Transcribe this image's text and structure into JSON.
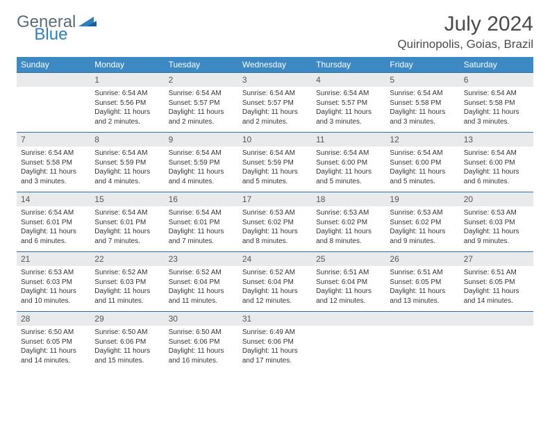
{
  "colors": {
    "header_bg": "#3d89c3",
    "header_text": "#ffffff",
    "daynum_bg": "#e9eaeb",
    "row_border": "#2d6fa8",
    "logo_gray": "#5a6b7a",
    "logo_blue": "#2d7fc1",
    "text": "#333333"
  },
  "logo": {
    "part1": "General",
    "part2": "Blue"
  },
  "title": "July 2024",
  "location": "Quirinopolis, Goias, Brazil",
  "weekdays": [
    "Sunday",
    "Monday",
    "Tuesday",
    "Wednesday",
    "Thursday",
    "Friday",
    "Saturday"
  ],
  "layout": {
    "first_weekday_index": 1,
    "days_in_month": 31
  },
  "days": {
    "1": {
      "sunrise": "6:54 AM",
      "sunset": "5:56 PM",
      "daylight": "11 hours and 2 minutes."
    },
    "2": {
      "sunrise": "6:54 AM",
      "sunset": "5:57 PM",
      "daylight": "11 hours and 2 minutes."
    },
    "3": {
      "sunrise": "6:54 AM",
      "sunset": "5:57 PM",
      "daylight": "11 hours and 2 minutes."
    },
    "4": {
      "sunrise": "6:54 AM",
      "sunset": "5:57 PM",
      "daylight": "11 hours and 3 minutes."
    },
    "5": {
      "sunrise": "6:54 AM",
      "sunset": "5:58 PM",
      "daylight": "11 hours and 3 minutes."
    },
    "6": {
      "sunrise": "6:54 AM",
      "sunset": "5:58 PM",
      "daylight": "11 hours and 3 minutes."
    },
    "7": {
      "sunrise": "6:54 AM",
      "sunset": "5:58 PM",
      "daylight": "11 hours and 3 minutes."
    },
    "8": {
      "sunrise": "6:54 AM",
      "sunset": "5:59 PM",
      "daylight": "11 hours and 4 minutes."
    },
    "9": {
      "sunrise": "6:54 AM",
      "sunset": "5:59 PM",
      "daylight": "11 hours and 4 minutes."
    },
    "10": {
      "sunrise": "6:54 AM",
      "sunset": "5:59 PM",
      "daylight": "11 hours and 5 minutes."
    },
    "11": {
      "sunrise": "6:54 AM",
      "sunset": "6:00 PM",
      "daylight": "11 hours and 5 minutes."
    },
    "12": {
      "sunrise": "6:54 AM",
      "sunset": "6:00 PM",
      "daylight": "11 hours and 5 minutes."
    },
    "13": {
      "sunrise": "6:54 AM",
      "sunset": "6:00 PM",
      "daylight": "11 hours and 6 minutes."
    },
    "14": {
      "sunrise": "6:54 AM",
      "sunset": "6:01 PM",
      "daylight": "11 hours and 6 minutes."
    },
    "15": {
      "sunrise": "6:54 AM",
      "sunset": "6:01 PM",
      "daylight": "11 hours and 7 minutes."
    },
    "16": {
      "sunrise": "6:54 AM",
      "sunset": "6:01 PM",
      "daylight": "11 hours and 7 minutes."
    },
    "17": {
      "sunrise": "6:53 AM",
      "sunset": "6:02 PM",
      "daylight": "11 hours and 8 minutes."
    },
    "18": {
      "sunrise": "6:53 AM",
      "sunset": "6:02 PM",
      "daylight": "11 hours and 8 minutes."
    },
    "19": {
      "sunrise": "6:53 AM",
      "sunset": "6:02 PM",
      "daylight": "11 hours and 9 minutes."
    },
    "20": {
      "sunrise": "6:53 AM",
      "sunset": "6:03 PM",
      "daylight": "11 hours and 9 minutes."
    },
    "21": {
      "sunrise": "6:53 AM",
      "sunset": "6:03 PM",
      "daylight": "11 hours and 10 minutes."
    },
    "22": {
      "sunrise": "6:52 AM",
      "sunset": "6:03 PM",
      "daylight": "11 hours and 11 minutes."
    },
    "23": {
      "sunrise": "6:52 AM",
      "sunset": "6:04 PM",
      "daylight": "11 hours and 11 minutes."
    },
    "24": {
      "sunrise": "6:52 AM",
      "sunset": "6:04 PM",
      "daylight": "11 hours and 12 minutes."
    },
    "25": {
      "sunrise": "6:51 AM",
      "sunset": "6:04 PM",
      "daylight": "11 hours and 12 minutes."
    },
    "26": {
      "sunrise": "6:51 AM",
      "sunset": "6:05 PM",
      "daylight": "11 hours and 13 minutes."
    },
    "27": {
      "sunrise": "6:51 AM",
      "sunset": "6:05 PM",
      "daylight": "11 hours and 14 minutes."
    },
    "28": {
      "sunrise": "6:50 AM",
      "sunset": "6:05 PM",
      "daylight": "11 hours and 14 minutes."
    },
    "29": {
      "sunrise": "6:50 AM",
      "sunset": "6:06 PM",
      "daylight": "11 hours and 15 minutes."
    },
    "30": {
      "sunrise": "6:50 AM",
      "sunset": "6:06 PM",
      "daylight": "11 hours and 16 minutes."
    },
    "31": {
      "sunrise": "6:49 AM",
      "sunset": "6:06 PM",
      "daylight": "11 hours and 17 minutes."
    }
  },
  "labels": {
    "sunrise": "Sunrise:",
    "sunset": "Sunset:",
    "daylight": "Daylight:"
  }
}
